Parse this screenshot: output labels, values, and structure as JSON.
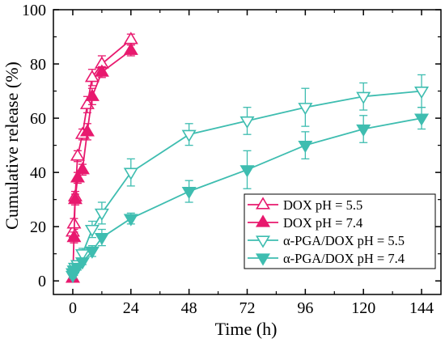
{
  "chart_data": {
    "type": "line",
    "xlabel": "Time (h)",
    "ylabel": "Cumulative release (%)",
    "xlim": [
      -8,
      152
    ],
    "ylim": [
      -5,
      100
    ],
    "xticks": [
      0,
      24,
      48,
      72,
      96,
      120,
      144
    ],
    "yticks": [
      0,
      20,
      40,
      60,
      80,
      100
    ],
    "legend_position": "bottom-right",
    "series": [
      {
        "name": "DOX pH = 5.5",
        "marker": "triangle-up-open",
        "color": "#e8196e",
        "x": [
          0,
          0.5,
          1,
          2,
          4,
          6,
          8,
          12,
          24
        ],
        "y": [
          18,
          21,
          31,
          46,
          54,
          65,
          75,
          80,
          89
        ],
        "err": [
          2,
          2,
          2,
          2,
          2,
          3,
          3,
          3,
          2
        ]
      },
      {
        "name": "DOX pH = 7.4",
        "marker": "triangle-up-filled",
        "color": "#e8196e",
        "x": [
          0,
          0.5,
          1,
          2,
          4,
          6,
          8,
          12,
          24
        ],
        "y": [
          1,
          16,
          30,
          38,
          41,
          55,
          68,
          77,
          85
        ],
        "err": [
          1,
          2,
          2,
          2,
          2,
          3,
          3,
          2,
          2
        ]
      },
      {
        "name": "α-PGA/DOX pH = 5.5",
        "marker": "triangle-down-open",
        "color": "#3ebdb0",
        "x": [
          0,
          0.5,
          1,
          2,
          4,
          8,
          12,
          24,
          48,
          72,
          96,
          120,
          144
        ],
        "y": [
          3,
          4,
          5,
          6,
          10,
          19,
          25,
          40,
          54,
          59,
          64,
          68,
          70
        ],
        "err": [
          1,
          1,
          1,
          1,
          2,
          3,
          4,
          5,
          4,
          5,
          7,
          5,
          6
        ]
      },
      {
        "name": "α-PGA/DOX pH = 7.4",
        "marker": "triangle-down-filled",
        "color": "#3ebdb0",
        "x": [
          0,
          0.5,
          1,
          2,
          4,
          8,
          12,
          24,
          48,
          72,
          96,
          120,
          144
        ],
        "y": [
          2,
          3,
          4,
          5,
          7,
          11,
          16,
          23,
          33,
          41,
          50,
          56,
          60
        ],
        "err": [
          1,
          1,
          1,
          1,
          1,
          2,
          3,
          2,
          4,
          7,
          5,
          5,
          4
        ]
      }
    ]
  }
}
